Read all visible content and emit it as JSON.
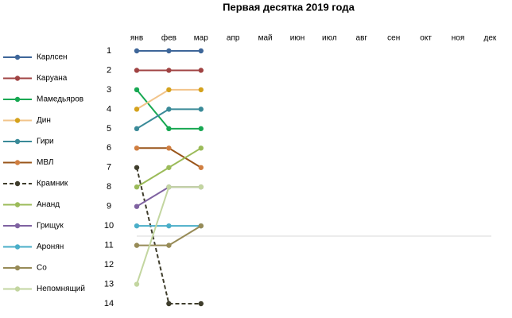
{
  "chart_data": {
    "type": "line",
    "title": "Первая десятка 2019 года",
    "categories": [
      "янв",
      "фев",
      "мар",
      "апр",
      "май",
      "июн",
      "июл",
      "авг",
      "сен",
      "окт",
      "ноя",
      "дек"
    ],
    "ylim": [
      1,
      14
    ],
    "yticks": [
      1,
      2,
      3,
      4,
      5,
      6,
      7,
      8,
      9,
      10,
      11,
      12,
      13,
      14
    ],
    "y_reversed": true,
    "legend": "left",
    "series": [
      {
        "name": "Карлсен",
        "color": "#3e6699",
        "values": [
          1,
          1,
          1,
          null,
          null,
          null,
          null,
          null,
          null,
          null,
          null,
          null
        ]
      },
      {
        "name": "Каруана",
        "color": "#a04343",
        "values": [
          2,
          2,
          2,
          null,
          null,
          null,
          null,
          null,
          null,
          null,
          null,
          null
        ]
      },
      {
        "name": "Мамедьяров",
        "color": "#17a852",
        "values": [
          3,
          5,
          5,
          null,
          null,
          null,
          null,
          null,
          null,
          null,
          null,
          null
        ]
      },
      {
        "name": "Дин",
        "color": "#f2c48a",
        "marker_color": "#d4a21c",
        "values": [
          4,
          3,
          3,
          null,
          null,
          null,
          null,
          null,
          null,
          null,
          null,
          null
        ]
      },
      {
        "name": "Гири",
        "color": "#3a8a98",
        "values": [
          5,
          4,
          4,
          null,
          null,
          null,
          null,
          null,
          null,
          null,
          null,
          null
        ]
      },
      {
        "name": "МВЛ",
        "color": "#99551a",
        "marker_color": "#d07e40",
        "values": [
          6,
          6,
          7,
          null,
          null,
          null,
          null,
          null,
          null,
          null,
          null,
          null
        ]
      },
      {
        "name": "Крамник",
        "color": "#3f3d2c",
        "dashed": true,
        "values": [
          7,
          14,
          14,
          null,
          null,
          null,
          null,
          null,
          null,
          null,
          null,
          null
        ]
      },
      {
        "name": "Ананд",
        "color": "#9bbb59",
        "values": [
          8,
          7,
          6,
          null,
          null,
          null,
          null,
          null,
          null,
          null,
          null,
          null
        ]
      },
      {
        "name": "Грищук",
        "color": "#7f62a1",
        "values": [
          9,
          8,
          8,
          null,
          null,
          null,
          null,
          null,
          null,
          null,
          null,
          null
        ]
      },
      {
        "name": "Аронян",
        "color": "#4aaec8",
        "values": [
          10,
          10,
          10,
          null,
          null,
          null,
          null,
          null,
          null,
          null,
          null,
          null
        ]
      },
      {
        "name": "Со",
        "color": "#978b57",
        "values": [
          11,
          11,
          10,
          null,
          null,
          null,
          null,
          null,
          null,
          null,
          null,
          null
        ]
      },
      {
        "name": "Непомнящий",
        "color": "#c3d6a0",
        "values": [
          13,
          8,
          8,
          null,
          null,
          null,
          null,
          null,
          null,
          null,
          null,
          null
        ]
      }
    ]
  }
}
